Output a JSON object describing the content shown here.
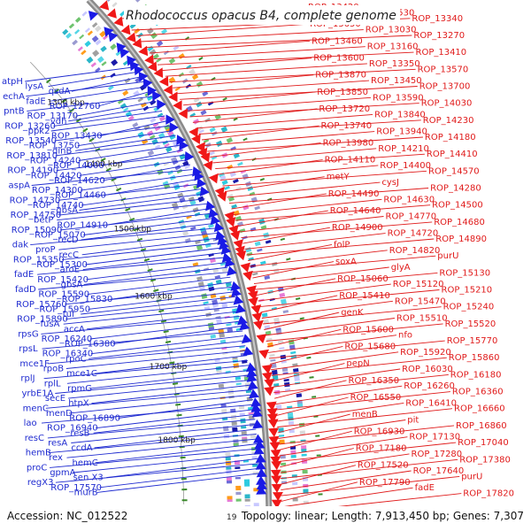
{
  "title": "Rhodococcus opacus B4, complete genome",
  "footer": {
    "accession": "Accession: NC_012522",
    "stats": "Topology: linear; Length: 7,913,450 bp; Genes: 7,307",
    "page_number": "19"
  },
  "colors": {
    "left_labels": "#1f2bd0",
    "right_labels": "#e01a1a",
    "backbone": "#7f7f7f",
    "scale_ticks": "#3a8a2a"
  },
  "scale_marks": [
    "1300 kbp",
    "1400 kbp",
    "1500 kbp",
    "1600 kbp",
    "1700 kbp",
    "1800 kbp"
  ],
  "left_labels": [
    "atpH",
    "lysA",
    "qsdA",
    "echA",
    "fadE",
    "ROP_12760",
    "pntB",
    "ROP_13170",
    "vdh",
    "ROP_13260",
    "ppk2",
    "ROP_13430",
    "ROP_13540",
    "ROP_13750",
    "dinB",
    "ROP_13810",
    "ROP_14240",
    "ROP_14000",
    "ROP_14190",
    "ROP_14420",
    "ROP_14620",
    "aspA",
    "ROP_14300",
    "ROP_14460",
    "ROP_14730",
    "ROP_14740",
    "gbsA",
    "ROP_14750",
    "betP",
    "ROP_14910",
    "ROP_15090",
    "ROP_15070",
    "recD",
    "dak",
    "proP",
    "recC",
    "ROP_15350",
    "ROP_15300",
    "aroE",
    "fadE",
    "ROP_15420",
    "gbsA",
    "fadD",
    "ROP_15590",
    "ROP_15830",
    "ROP_15760",
    "ROP_15950",
    "tuf",
    "ROP_15890",
    "fusA",
    "accA",
    "rpsG",
    "ROP_16240",
    "ROP_16380",
    "rpsL",
    "ROP_16340",
    "rpoC",
    "mce1F",
    "rpoB",
    "mce1C",
    "rplJ",
    "rplL",
    "rpmG",
    "yrbE1A",
    "secE",
    "htpX",
    "menC",
    "menD",
    "ROP_16890",
    "lao",
    "ROP_16940",
    "resB",
    "resC",
    "resA",
    "ccdA",
    "hemB",
    "rex",
    "hemC",
    "proC",
    "gpmA",
    "sen X3",
    "regX3",
    "ROP_17570",
    "murB"
  ],
  "right_labels": [
    "ROP_13420",
    "ROP_13530",
    "ROP_13340",
    "ROP_13650",
    "ROP_13030",
    "ROP_13270",
    "ROP_13460",
    "ROP_13160",
    "ROP_13410",
    "ROP_13600",
    "ROP_13350",
    "ROP_13570",
    "ROP_13870",
    "ROP_13450",
    "ROP_13700",
    "ROP_13850",
    "ROP_13590",
    "ROP_14030",
    "ROP_13720",
    "ROP_13840",
    "ROP_14230",
    "ROP_13740",
    "ROP_13940",
    "ROP_14180",
    "ROP_13980",
    "ROP_14210",
    "ROP_14410",
    "ROP_14110",
    "ROP_14400",
    "ROP_14570",
    "metY",
    "cysJ",
    "ROP_14280",
    "ROP_14490",
    "ROP_14630",
    "ROP_14500",
    "ROP_14640",
    "ROP_14770",
    "ROP_14680",
    "ROP_14900",
    "ROP_14720",
    "ROP_14890",
    "folP",
    "ROP_14820",
    "purU",
    "soxA",
    "glyA",
    "ROP_15130",
    "ROP_15060",
    "ROP_15120",
    "ROP_15210",
    "ROP_15410",
    "ROP_15470",
    "ROP_15240",
    "genK",
    "ROP_15510",
    "ROP_15520",
    "ROP_15600",
    "nfo",
    "ROP_15770",
    "ROP_15680",
    "ROP_15920",
    "ROP_15860",
    "pepN",
    "ROP_16030",
    "ROP_16180",
    "ROP_16350",
    "ROP_16260",
    "ROP_16360",
    "ROP_16550",
    "ROP_16410",
    "ROP_16660",
    "menB",
    "pit",
    "ROP_16860",
    "ROP_16930",
    "ROP_17130",
    "ROP_17040",
    "ROP_17180",
    "ROP_17280",
    "ROP_17380",
    "ROP_17520",
    "ROP_17640",
    "purU",
    "ROP_17790",
    "fadE",
    "ROP_17820"
  ]
}
